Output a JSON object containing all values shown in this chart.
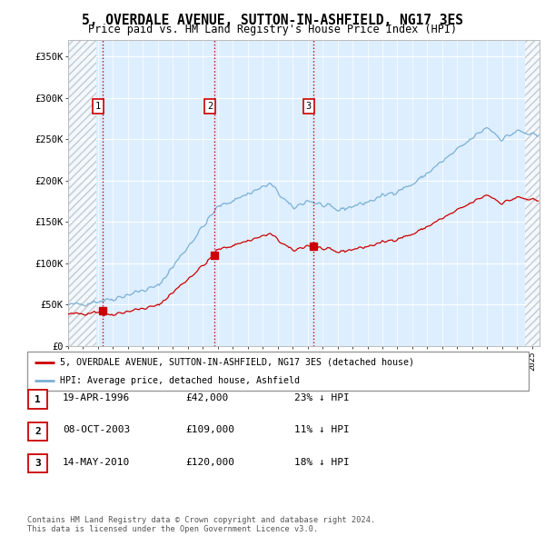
{
  "title": "5, OVERDALE AVENUE, SUTTON-IN-ASHFIELD, NG17 3ES",
  "subtitle": "Price paid vs. HM Land Registry's House Price Index (HPI)",
  "title_fontsize": 10.5,
  "subtitle_fontsize": 8.5,
  "ylim": [
    0,
    370000
  ],
  "yticks": [
    0,
    50000,
    100000,
    150000,
    200000,
    250000,
    300000,
    350000
  ],
  "ytick_labels": [
    "£0",
    "£50K",
    "£100K",
    "£150K",
    "£200K",
    "£250K",
    "£300K",
    "£350K"
  ],
  "sale_dates": [
    1996.3,
    2003.77,
    2010.37
  ],
  "sale_prices": [
    42000,
    109000,
    120000
  ],
  "sale_labels": [
    "1",
    "2",
    "3"
  ],
  "vline_color": "#cc0000",
  "property_line_color": "#cc0000",
  "hpi_line_color": "#7ab0d4",
  "plot_bg_color": "#ddeeff",
  "legend_label_property": "5, OVERDALE AVENUE, SUTTON-IN-ASHFIELD, NG17 3ES (detached house)",
  "legend_label_hpi": "HPI: Average price, detached house, Ashfield",
  "table_entries": [
    {
      "num": "1",
      "date": "19-APR-1996",
      "price": "£42,000",
      "pct": "23% ↓ HPI"
    },
    {
      "num": "2",
      "date": "08-OCT-2003",
      "price": "£109,000",
      "pct": "11% ↓ HPI"
    },
    {
      "num": "3",
      "date": "14-MAY-2010",
      "price": "£120,000",
      "pct": "18% ↓ HPI"
    }
  ],
  "footnote": "Contains HM Land Registry data © Crown copyright and database right 2024.\nThis data is licensed under the Open Government Licence v3.0."
}
